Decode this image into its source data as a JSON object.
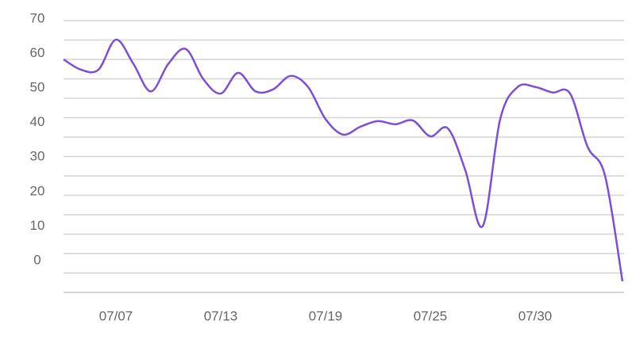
{
  "chart_data": {
    "type": "line",
    "categories": [
      null,
      null,
      null,
      "07/07",
      null,
      null,
      null,
      null,
      null,
      "07/13",
      null,
      null,
      null,
      null,
      null,
      "07/19",
      null,
      null,
      null,
      null,
      null,
      "07/25",
      null,
      null,
      null,
      null,
      null,
      "07/30",
      null,
      null,
      null,
      null,
      null
    ],
    "series": [
      {
        "color": "#7b4fd6",
        "values": [
          58.3,
          55.3,
          55.3,
          64,
          57,
          49,
          57,
          61.3,
          52.6,
          48.4,
          54.4,
          49,
          49.6,
          53.5,
          50.3,
          41,
          36.5,
          38.8,
          40.4,
          39.5,
          40.6,
          36,
          38.3,
          26.2,
          10,
          41,
          50.3,
          50.3,
          48.7,
          48.4,
          33,
          24.6,
          -6
        ]
      }
    ],
    "ylim": [
      -9.2,
      70.9
    ],
    "yticks": [
      0,
      10,
      20,
      30,
      40,
      50,
      60,
      70
    ]
  }
}
